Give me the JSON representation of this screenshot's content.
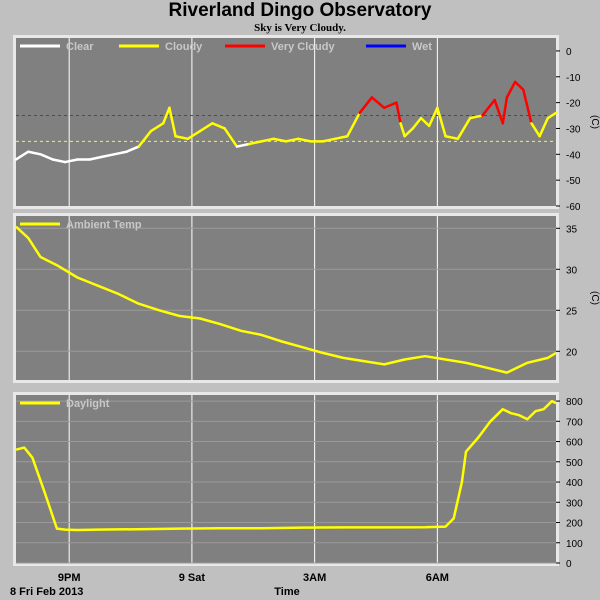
{
  "title": "Riverland Dingo Observatory",
  "subtitle": "Sky is Very Cloudy.",
  "x_axis": {
    "label": "Time",
    "date_label": "8 Fri Feb 2013",
    "ticks": [
      "9PM",
      "9 Sat",
      "3AM",
      "6AM"
    ]
  },
  "colors": {
    "background": "#c0c0c0",
    "plot": "#808080",
    "grid": "#ffffff",
    "clear": "#ffffff",
    "cloudy": "#ffff00",
    "very_cloudy": "#ff0000",
    "wet": "#0000ff"
  },
  "chart_data": [
    {
      "type": "line",
      "name": "sky",
      "ylabel": "(C)",
      "ylim": [
        -60,
        5
      ],
      "yticks": [
        "0",
        "-10",
        "-20",
        "-30",
        "-40",
        "-50",
        "-60"
      ],
      "x_hours_since_7pm": [
        0,
        0.3,
        0.6,
        0.9,
        1.2,
        1.5,
        1.8,
        2.1,
        2.4,
        2.7,
        3.0,
        3.3,
        3.6,
        3.75,
        3.9,
        4.2,
        4.5,
        4.8,
        5.1,
        5.4,
        5.7,
        6.0,
        6.3,
        6.6,
        6.9,
        7.2,
        7.5,
        7.8,
        8.1,
        8.4,
        8.7,
        9.0,
        9.3,
        9.4,
        9.5,
        9.7,
        9.9,
        10.1,
        10.3,
        10.5,
        10.8,
        11.1,
        11.4,
        11.7,
        11.9,
        12.0,
        12.2,
        12.4,
        12.6,
        12.8,
        13.0,
        13.2
      ],
      "values": [
        -42,
        -39,
        -40,
        -42,
        -43,
        -42,
        -42,
        -41,
        -40,
        -39,
        -37,
        -31,
        -28,
        -22,
        -33,
        -34,
        -31,
        -28,
        -30,
        -37,
        -36,
        -35,
        -34,
        -35,
        -34,
        -35,
        -35,
        -34,
        -33,
        -24,
        -18,
        -22,
        -20,
        -28,
        -33,
        -30,
        -26,
        -29,
        -22,
        -33,
        -34,
        -26,
        -25,
        -19,
        -28,
        -18,
        -12,
        -15,
        -28,
        -33,
        -26,
        -24
      ],
      "thresholds": [
        -25,
        -35
      ],
      "legend": [
        {
          "label": "Clear",
          "color": "#ffffff"
        },
        {
          "label": "Cloudy",
          "color": "#ffff00"
        },
        {
          "label": "Very Cloudy",
          "color": "#ff0000"
        },
        {
          "label": "Wet",
          "color": "#0000ff"
        }
      ]
    },
    {
      "type": "line",
      "name": "ambient",
      "ylabel": "(C)",
      "ylim": [
        16.5,
        36.5
      ],
      "yticks": [
        "35",
        "30",
        "25",
        "20"
      ],
      "legend": [
        {
          "label": "Ambient Temp",
          "color": "#ffff00"
        }
      ],
      "x_hours_since_7pm": [
        0,
        0.3,
        0.6,
        1.0,
        1.5,
        2.0,
        2.5,
        3.0,
        3.5,
        4.0,
        4.5,
        5.0,
        5.5,
        6.0,
        6.5,
        7.0,
        7.5,
        8.0,
        8.5,
        9.0,
        9.5,
        10.0,
        10.5,
        11.0,
        11.5,
        12.0,
        12.5,
        13.0,
        13.2
      ],
      "values": [
        35.2,
        33.8,
        31.5,
        30.5,
        29.0,
        28.0,
        27.0,
        25.8,
        25.0,
        24.3,
        24.0,
        23.3,
        22.5,
        22.0,
        21.2,
        20.5,
        19.8,
        19.2,
        18.8,
        18.4,
        19.0,
        19.4,
        19.0,
        18.6,
        18.0,
        17.4,
        18.6,
        19.2,
        19.8
      ]
    },
    {
      "type": "line",
      "name": "daylight",
      "ylim": [
        0,
        830
      ],
      "yticks": [
        "800",
        "700",
        "600",
        "500",
        "400",
        "300",
        "200",
        "100",
        "0"
      ],
      "legend": [
        {
          "label": "Daylight",
          "color": "#ffff00"
        }
      ],
      "x_hours_since_7pm": [
        0,
        0.2,
        0.4,
        0.7,
        1.0,
        1.2,
        1.5,
        2.0,
        3.0,
        4.0,
        5.0,
        6.0,
        7.0,
        8.0,
        9.0,
        10.0,
        10.5,
        10.7,
        10.9,
        11.0,
        11.3,
        11.6,
        11.9,
        12.1,
        12.3,
        12.5,
        12.7,
        12.9,
        13.1,
        13.2
      ],
      "values": [
        560,
        570,
        520,
        350,
        170,
        165,
        163,
        165,
        167,
        170,
        172,
        172,
        175,
        176,
        176,
        177,
        180,
        220,
        400,
        550,
        620,
        700,
        760,
        740,
        730,
        710,
        750,
        760,
        800,
        790
      ]
    }
  ]
}
